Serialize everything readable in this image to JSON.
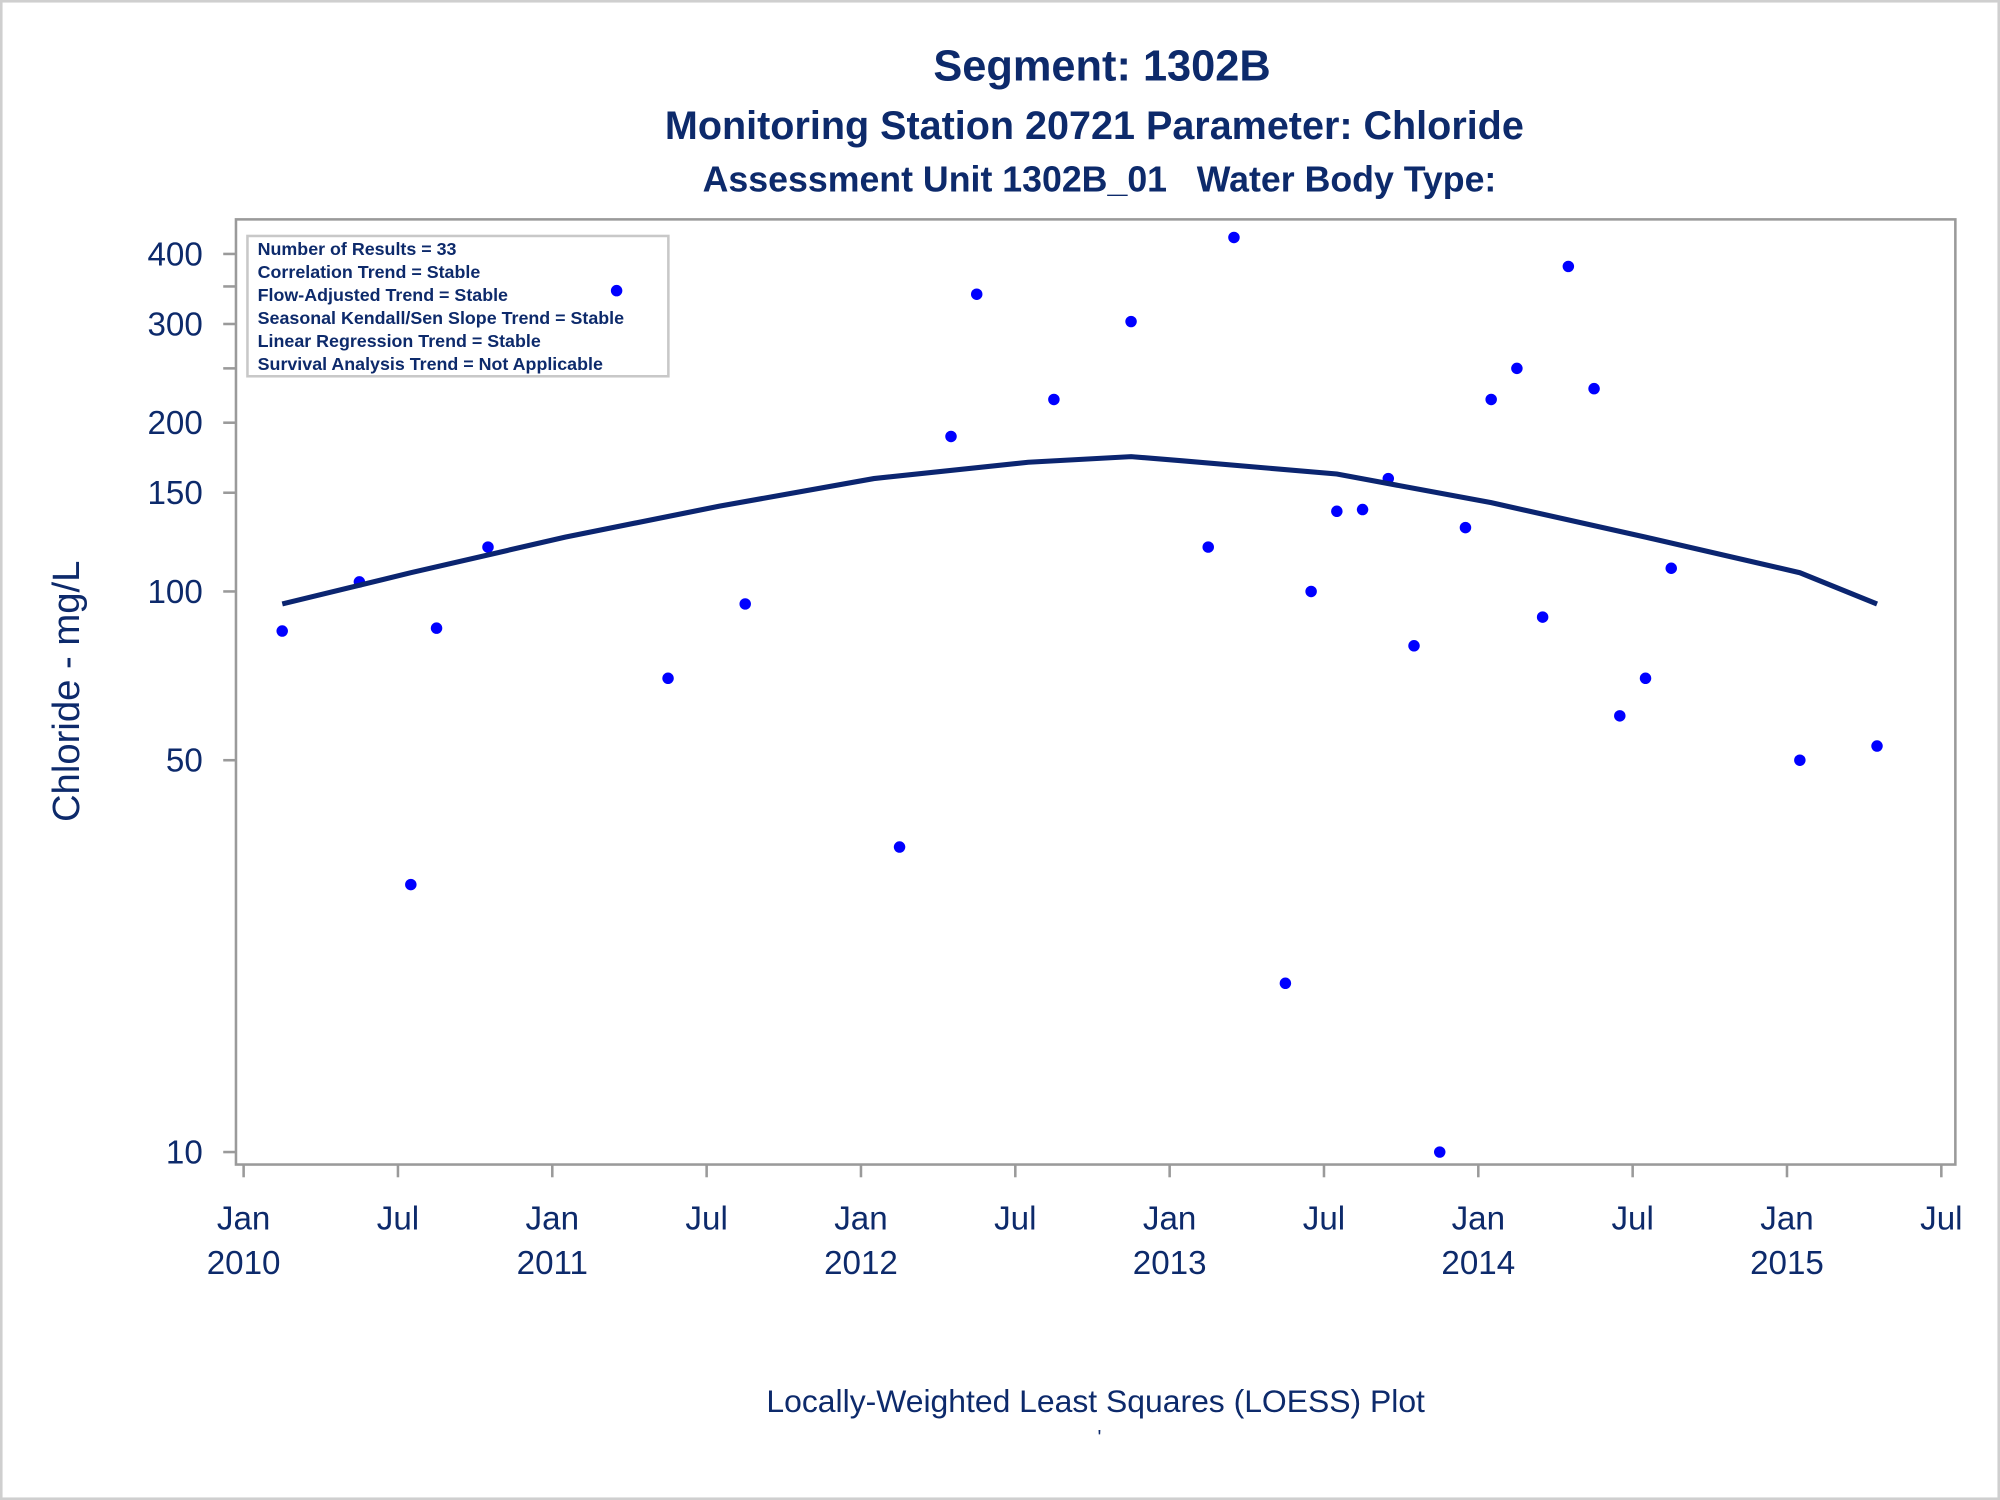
{
  "chart_data": {
    "type": "scatter",
    "title": "Segment: 1302B",
    "subtitle": "Monitoring Station 20721 Parameter: Chloride",
    "subtitle2": "Assessment Unit 1302B_01   Water Body Type:",
    "y_label": "Chloride - mg/L",
    "footnote": "Locally-Weighted Least Squares (LOESS) Plot",
    "footnote2": "'",
    "stats": [
      "Number of Results = 33",
      "Correlation Trend = Stable",
      "Flow-Adjusted Trend = Stable",
      "Seasonal Kendall/Sen Slope Trend = Stable",
      "Linear Regression Trend = Stable",
      "Survival Analysis Trend = Not Applicable"
    ],
    "y_scale": "log",
    "xlim": [
      "2010-01",
      "2015-07"
    ],
    "xticks": [
      {
        "value": "2010-01",
        "label": [
          "Jan",
          "2010"
        ]
      },
      {
        "value": "2010-07",
        "label": [
          "Jul"
        ]
      },
      {
        "value": "2011-01",
        "label": [
          "Jan",
          "2011"
        ]
      },
      {
        "value": "2011-07",
        "label": [
          "Jul"
        ]
      },
      {
        "value": "2012-01",
        "label": [
          "Jan",
          "2012"
        ]
      },
      {
        "value": "2012-07",
        "label": [
          "Jul"
        ]
      },
      {
        "value": "2013-01",
        "label": [
          "Jan",
          "2013"
        ]
      },
      {
        "value": "2013-07",
        "label": [
          "Jul"
        ]
      },
      {
        "value": "2014-01",
        "label": [
          "Jan",
          "2014"
        ]
      },
      {
        "value": "2014-07",
        "label": [
          "Jul"
        ]
      },
      {
        "value": "2015-01",
        "label": [
          "Jan",
          "2015"
        ]
      },
      {
        "value": "2015-07",
        "label": [
          "Jul"
        ]
      }
    ],
    "ylim": [
      9.5,
      461
    ],
    "yticks": [
      10,
      50,
      100,
      150,
      200,
      300,
      400
    ],
    "yminor_ticks": [
      250,
      350
    ],
    "series": [
      {
        "name": "Results",
        "color": "#0000ff",
        "x": [
          "2010-02",
          "2010-05",
          "2010-07",
          "2010-08",
          "2010-10",
          "2011-03",
          "2011-05",
          "2011-08",
          "2012-02",
          "2012-04",
          "2012-05",
          "2012-08",
          "2012-11",
          "2013-02",
          "2013-03",
          "2013-05",
          "2013-06",
          "2013-07",
          "2013-08",
          "2013-09",
          "2013-10",
          "2013-11",
          "2013-12",
          "2014-01",
          "2014-02",
          "2014-03",
          "2014-04",
          "2014-05",
          "2014-06",
          "2014-07",
          "2014-08",
          "2015-01",
          "2015-04"
        ],
        "values": [
          85,
          104,
          30,
          86,
          120,
          344,
          70,
          95,
          35,
          189,
          339,
          220,
          303,
          120,
          428,
          20,
          100,
          139,
          140,
          159,
          80,
          10,
          130,
          220,
          250,
          90,
          380,
          230,
          60,
          70,
          110,
          50,
          53
        ]
      },
      {
        "name": "LOESS",
        "color": "#0b2570",
        "line": true,
        "x": [
          "2010-02",
          "2010-07",
          "2011-01",
          "2011-07",
          "2012-01",
          "2012-07",
          "2012-11",
          "2013-01",
          "2013-07",
          "2014-01",
          "2014-07",
          "2015-01",
          "2015-04"
        ],
        "values": [
          95,
          108,
          125,
          142,
          159,
          170,
          174,
          171,
          162,
          144,
          125,
          108,
          95
        ]
      }
    ]
  }
}
